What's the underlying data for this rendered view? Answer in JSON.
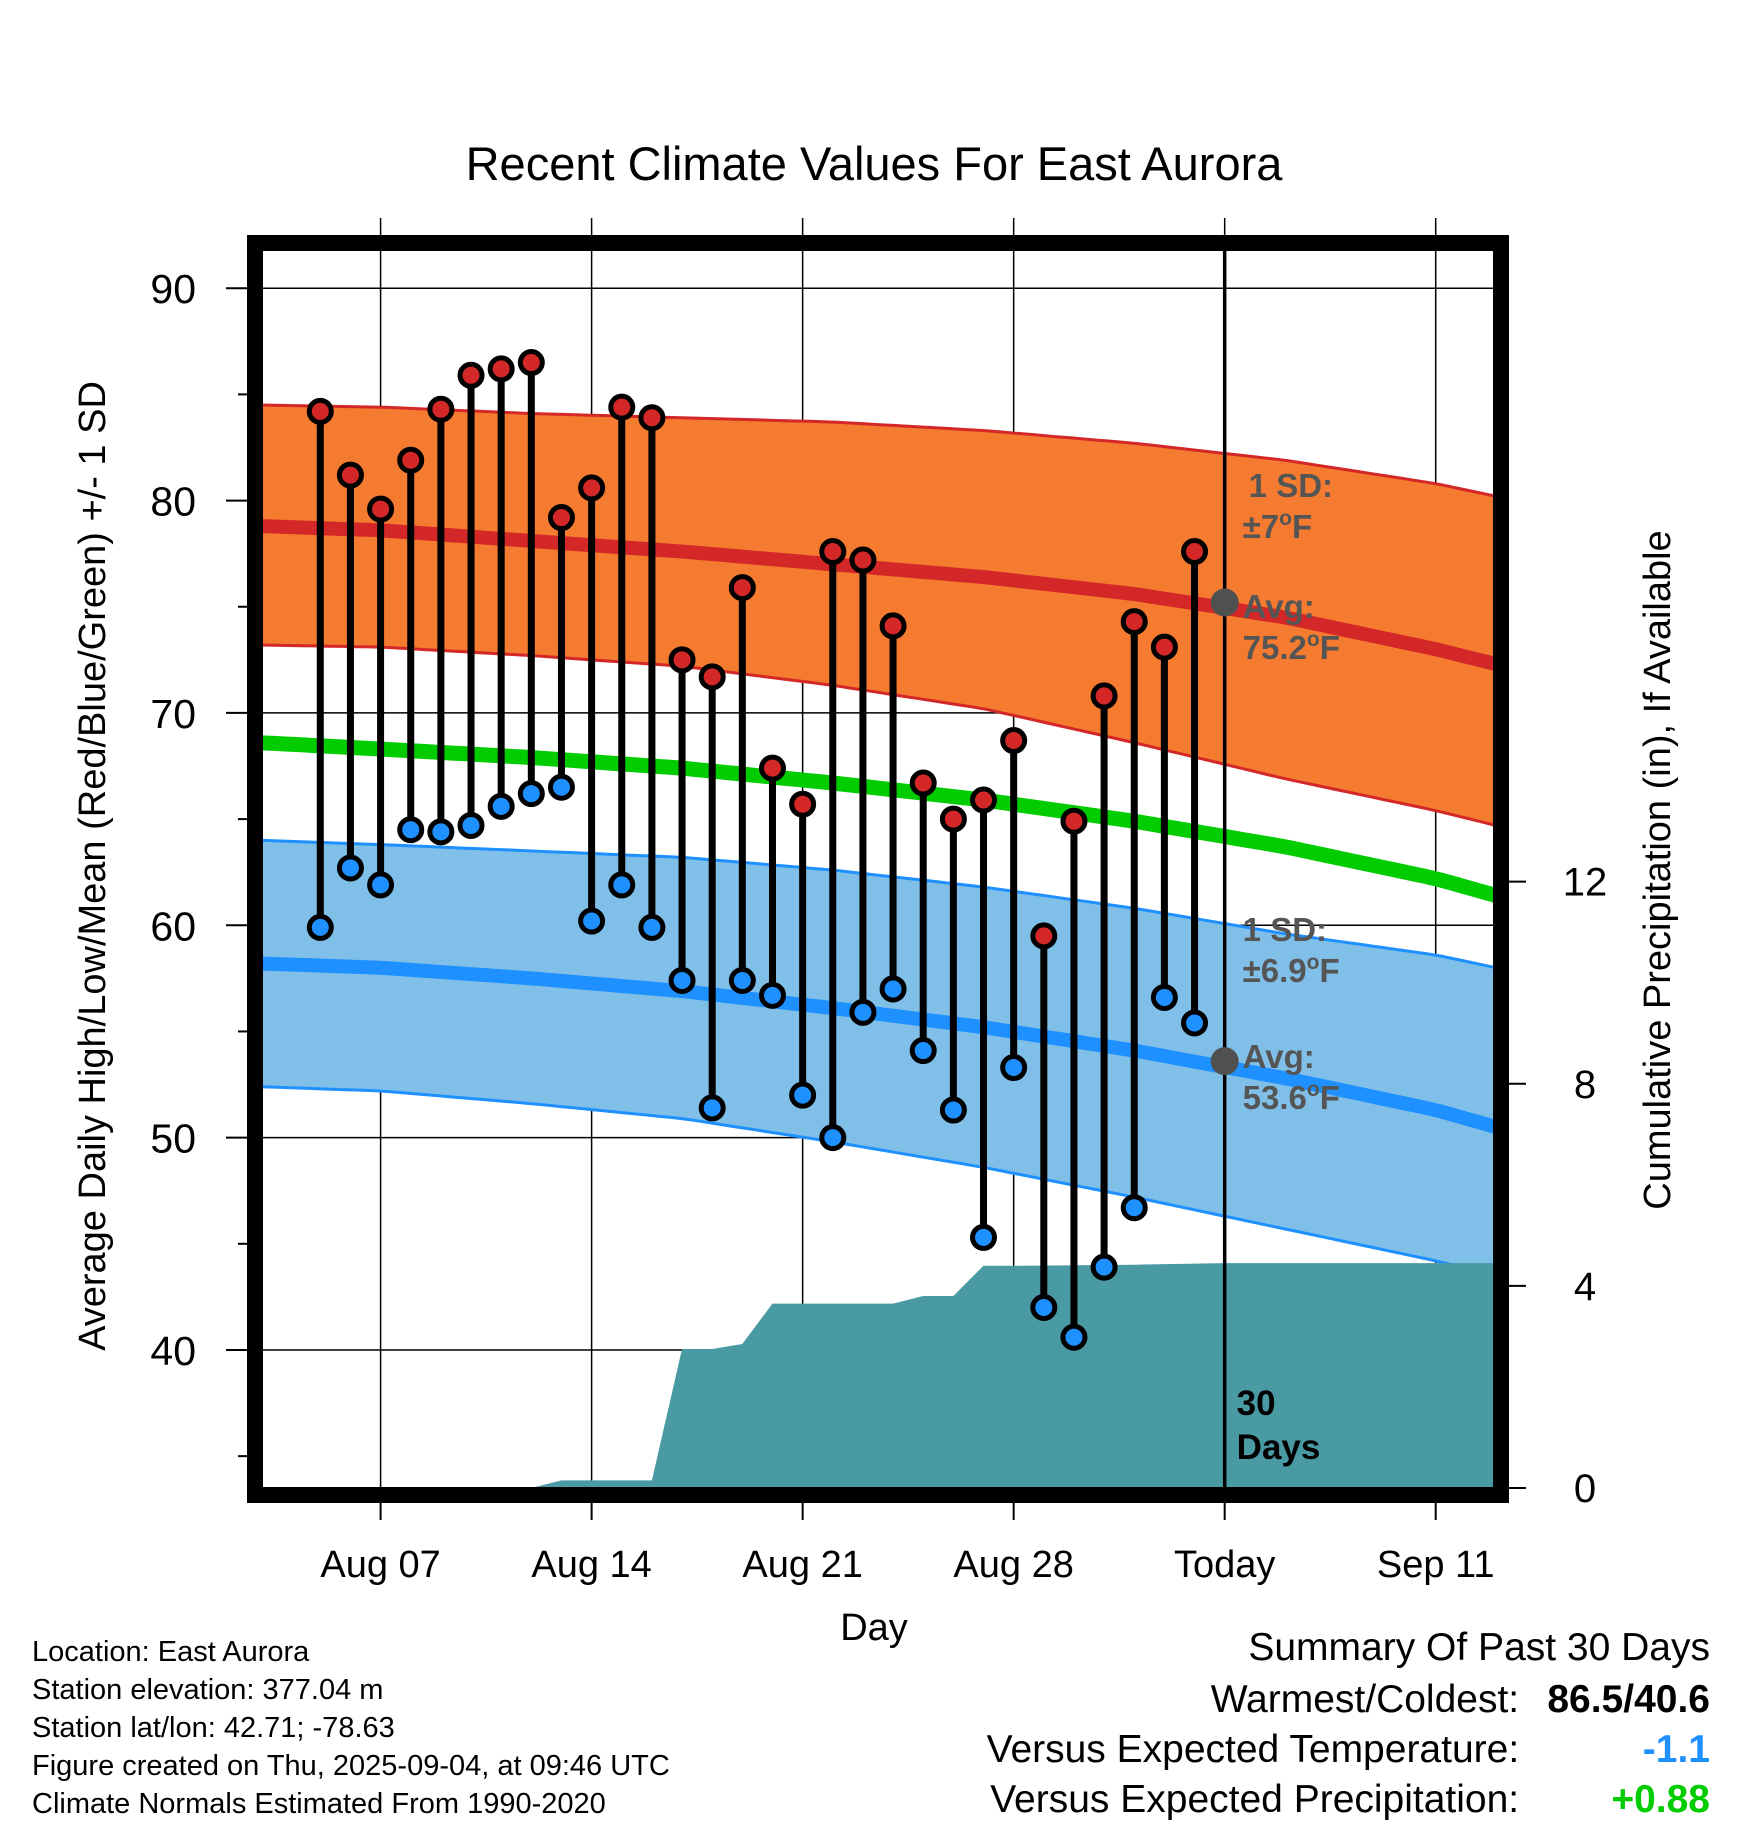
{
  "chart_data": {
    "type": "line",
    "title": "Recent Climate Values For East Aurora",
    "xlabel": "Day",
    "ylabel": "Average Daily High/Low/Mean (Red/Blue/Green) +/- 1 SD",
    "y2label": "Cumulative Precipitation (in), If Available",
    "xlim": [
      1,
      42
    ],
    "ylim": [
      33.5,
      91.8
    ],
    "y2lim": [
      0,
      24.5
    ],
    "x_ticks": [
      {
        "day": 5,
        "label": "Aug 07"
      },
      {
        "day": 12,
        "label": "Aug 14"
      },
      {
        "day": 19,
        "label": "Aug 21"
      },
      {
        "day": 26,
        "label": "Aug 28"
      },
      {
        "day": 33,
        "label": "Today"
      },
      {
        "day": 40,
        "label": "Sep 11"
      }
    ],
    "y_ticks": [
      40,
      50,
      60,
      70,
      80,
      90
    ],
    "y2_ticks": [
      0,
      4,
      8,
      12
    ],
    "today_day": 33,
    "days_label": "30\nDays",
    "colors": {
      "high_band": "#f47b30",
      "high_mean": "#d42727",
      "low_band": "#80c0e8",
      "low_mean": "#1e90ff",
      "mean": "#00cc00",
      "precip": "#4a9aa4",
      "high_dot": "#d42727",
      "low_dot": "#1e90ff",
      "avg_marker": "#505050"
    },
    "normals": {
      "days": [
        1,
        5,
        10,
        15,
        20,
        25,
        30,
        35,
        40,
        42
      ],
      "high_avg": [
        78.8,
        78.6,
        78.1,
        77.6,
        77.0,
        76.4,
        75.6,
        74.5,
        73.0,
        72.3
      ],
      "high_upper": [
        84.5,
        84.4,
        84.1,
        83.9,
        83.7,
        83.3,
        82.7,
        81.9,
        80.8,
        80.2
      ],
      "high_lower": [
        73.2,
        73.1,
        72.7,
        72.2,
        71.3,
        70.2,
        68.6,
        66.9,
        65.4,
        64.7
      ],
      "mean": [
        68.6,
        68.3,
        67.9,
        67.4,
        66.7,
        65.9,
        64.9,
        63.7,
        62.2,
        61.4
      ],
      "low_avg": [
        58.2,
        58.0,
        57.5,
        56.9,
        56.1,
        55.2,
        54.1,
        52.8,
        51.3,
        50.5
      ],
      "low_upper": [
        64.0,
        63.8,
        63.5,
        63.2,
        62.6,
        61.8,
        60.8,
        59.6,
        58.6,
        58.0
      ],
      "low_lower": [
        52.4,
        52.2,
        51.6,
        50.9,
        49.8,
        48.6,
        47.2,
        45.7,
        44.2,
        43.5
      ]
    },
    "series": [
      {
        "name": "High",
        "days": [
          3,
          4,
          5,
          6,
          7,
          8,
          9,
          10,
          11,
          12,
          13,
          14,
          15,
          16,
          17,
          18,
          19,
          20,
          21,
          22,
          23,
          24,
          25,
          26,
          27,
          28,
          29,
          30,
          31,
          32
        ],
        "values": [
          84.2,
          81.2,
          79.6,
          81.9,
          84.3,
          85.9,
          86.2,
          86.5,
          79.2,
          80.6,
          84.4,
          83.9,
          72.5,
          71.7,
          75.9,
          67.4,
          65.7,
          77.6,
          77.2,
          74.1,
          66.7,
          65.0,
          65.9,
          68.7,
          59.5,
          64.9,
          70.8,
          74.3,
          73.1,
          77.6
        ]
      },
      {
        "name": "Low",
        "days": [
          3,
          4,
          5,
          6,
          7,
          8,
          9,
          10,
          11,
          12,
          13,
          14,
          15,
          16,
          17,
          18,
          19,
          20,
          21,
          22,
          23,
          24,
          25,
          26,
          27,
          28,
          29,
          30,
          31,
          32
        ],
        "values": [
          59.9,
          62.7,
          61.9,
          64.5,
          64.4,
          64.7,
          65.6,
          66.2,
          66.5,
          60.2,
          61.9,
          59.9,
          57.4,
          51.4,
          57.4,
          56.7,
          52.0,
          50.0,
          55.9,
          57.0,
          54.1,
          51.3,
          45.3,
          53.3,
          42.0,
          40.6,
          43.9,
          46.7,
          56.6,
          55.4
        ]
      },
      {
        "name": "Precipitation",
        "days": [
          1,
          10,
          11,
          13,
          14,
          15,
          16,
          17,
          18,
          19,
          20,
          21,
          22,
          23,
          24,
          25,
          26,
          26.3,
          30,
          33,
          42
        ],
        "values": [
          0,
          0,
          0.15,
          0.15,
          0.15,
          2.75,
          2.75,
          2.85,
          3.65,
          3.65,
          3.65,
          3.65,
          3.65,
          3.8,
          3.8,
          4.4,
          4.4,
          4.4,
          4.42,
          4.45,
          4.45
        ]
      }
    ],
    "annotations": {
      "high_sd_label": "1 SD:",
      "high_sd_value": "±7",
      "high_sd_unit": "F",
      "high_avg_label": "Avg:",
      "high_avg_value": "75.2",
      "high_avg_unit": "F",
      "high_avg_marker": 75.2,
      "low_sd_label": "1 SD:",
      "low_sd_value": "±6.9",
      "low_sd_unit": "F",
      "low_avg_label": "Avg:",
      "low_avg_value": "53.6",
      "low_avg_unit": "F",
      "low_avg_marker": 53.6,
      "degree_symbol": "o"
    }
  },
  "info": {
    "location": "Location: East Aurora",
    "elevation": "Station elevation: 377.04 m",
    "latlon": "Station lat/lon: 42.71; -78.63",
    "created": "Figure created on Thu, 2025-09-04, at 09:46 UTC",
    "normals": "Climate Normals Estimated From 1990-2020"
  },
  "summary": {
    "heading": "Summary Of Past 30 Days",
    "warmest_label": "Warmest/Coldest:",
    "warmest_value": "86.5/40.6",
    "temp_label": "Versus Expected Temperature:",
    "temp_value": "-1.1",
    "temp_color": "#1e90ff",
    "precip_label": "Versus Expected Precipitation:",
    "precip_value": "+0.88",
    "precip_color": "#00cc00"
  }
}
